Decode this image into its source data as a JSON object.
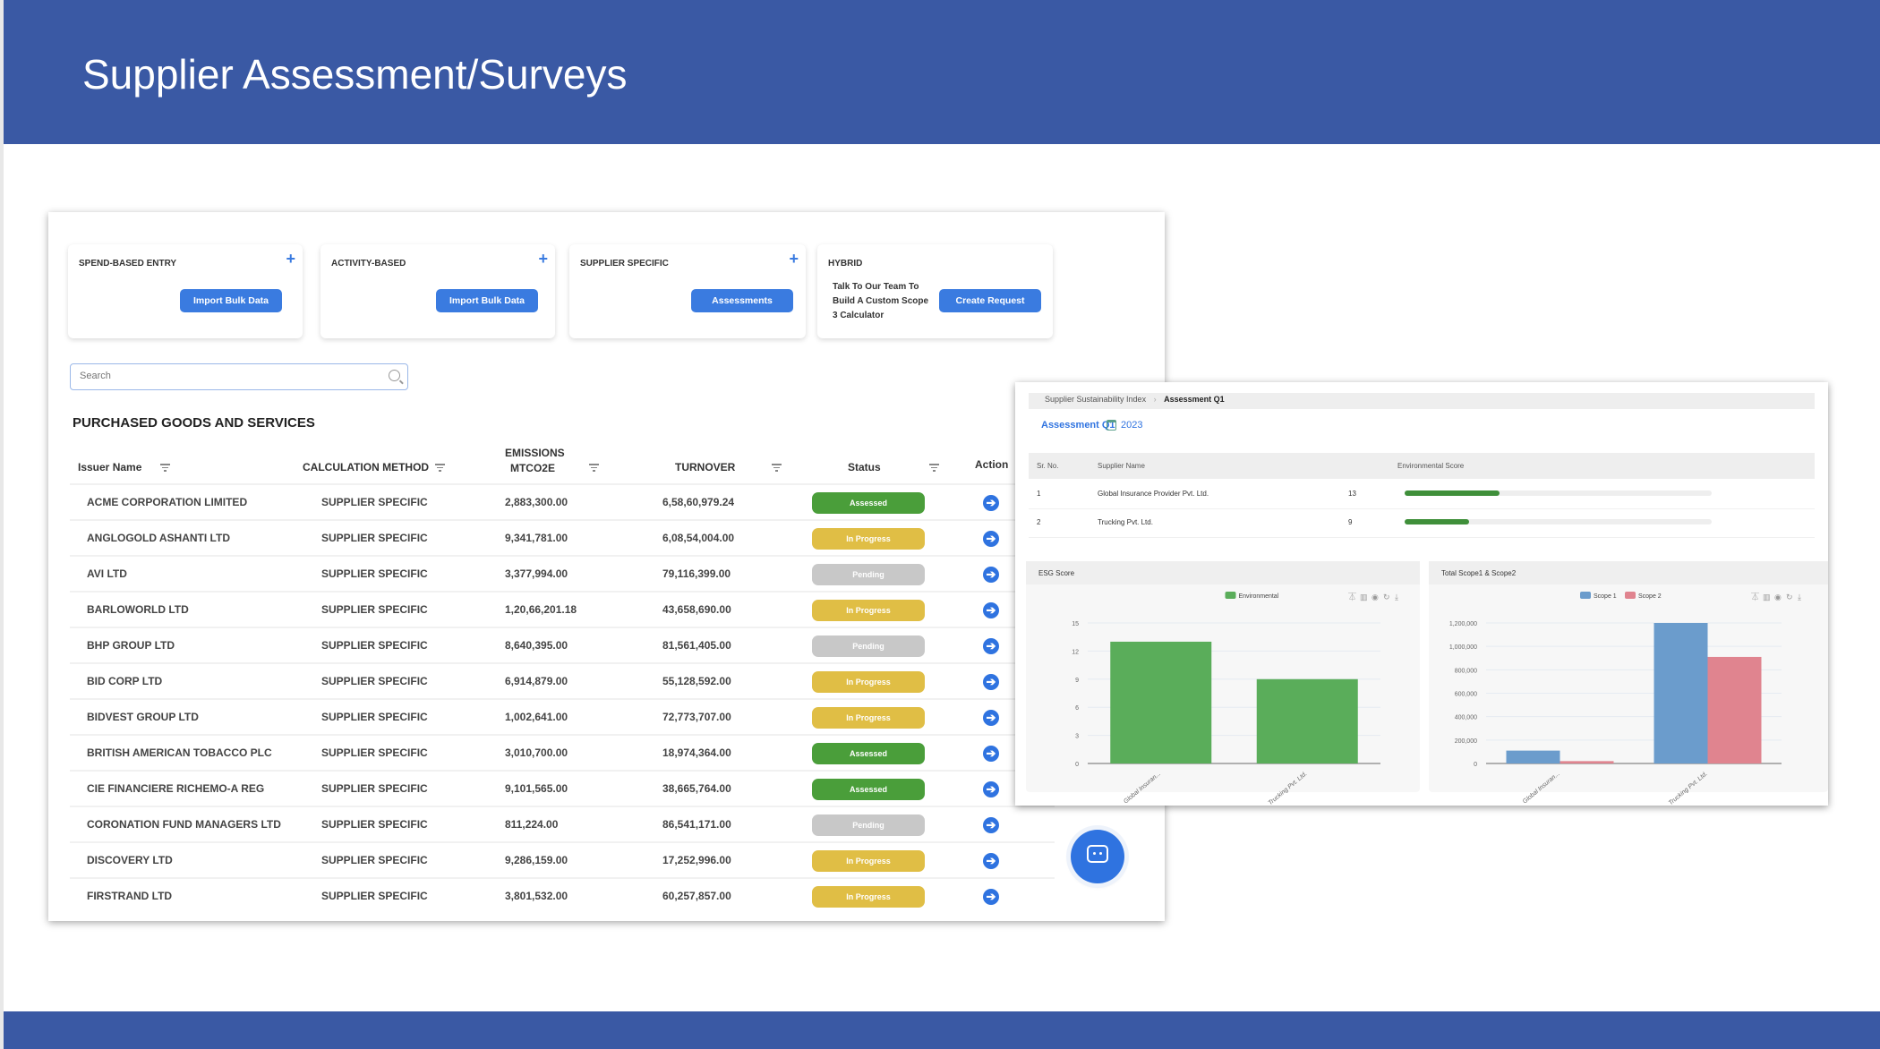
{
  "page_title": "Supplier Assessment/Surveys",
  "cards": [
    {
      "title": "SPEND-BASED ENTRY",
      "button": "Import Bulk Data",
      "has_plus": true
    },
    {
      "title": "ACTIVITY-BASED",
      "button": "Import Bulk Data",
      "has_plus": true
    },
    {
      "title": "SUPPLIER SPECIFIC",
      "button": "Assessments",
      "has_plus": true
    },
    {
      "title": "HYBRID",
      "button": "Create Request",
      "text": "Talk To Our Team To Build A Custom Scope 3 Calculator",
      "has_plus": false
    }
  ],
  "search": {
    "placeholder": "Search"
  },
  "section_title": "PURCHASED GOODS AND SERVICES",
  "table": {
    "headers": {
      "issuer": "Issuer Name",
      "method": "CALCULATION METHOD",
      "emissions_1": "EMISSIONS",
      "emissions_2": "MTCO2E",
      "turnover": "TURNOVER",
      "status": "Status",
      "action": "Action"
    },
    "rows": [
      {
        "name": "ACME CORPORATION LIMITED",
        "method": "SUPPLIER SPECIFIC",
        "emissions": "2,883,300.00",
        "turnover": "6,58,60,979.24",
        "status": "Assessed"
      },
      {
        "name": "ANGLOGOLD ASHANTI LTD",
        "method": "SUPPLIER SPECIFIC",
        "emissions": "9,341,781.00",
        "turnover": "6,08,54,004.00",
        "status": "In Progress"
      },
      {
        "name": "AVI LTD",
        "method": "SUPPLIER SPECIFIC",
        "emissions": "3,377,994.00",
        "turnover": "79,116,399.00",
        "status": "Pending"
      },
      {
        "name": "BARLOWORLD LTD",
        "method": "SUPPLIER SPECIFIC",
        "emissions": "1,20,66,201.18",
        "turnover": "43,658,690.00",
        "status": "In Progress"
      },
      {
        "name": "BHP GROUP LTD",
        "method": "SUPPLIER SPECIFIC",
        "emissions": "8,640,395.00",
        "turnover": "81,561,405.00",
        "status": "Pending"
      },
      {
        "name": "BID CORP LTD",
        "method": "SUPPLIER SPECIFIC",
        "emissions": "6,914,879.00",
        "turnover": "55,128,592.00",
        "status": "In Progress"
      },
      {
        "name": "BIDVEST GROUP LTD",
        "method": "SUPPLIER SPECIFIC",
        "emissions": "1,002,641.00",
        "turnover": "72,773,707.00",
        "status": "In Progress"
      },
      {
        "name": "BRITISH AMERICAN TOBACCO PLC",
        "method": "SUPPLIER SPECIFIC",
        "emissions": "3,010,700.00",
        "turnover": "18,974,364.00",
        "status": "Assessed"
      },
      {
        "name": "CIE FINANCIERE RICHEMO-A REG",
        "method": "SUPPLIER SPECIFIC",
        "emissions": "9,101,565.00",
        "turnover": "38,665,764.00",
        "status": "Assessed"
      },
      {
        "name": "CORONATION FUND MANAGERS LTD",
        "method": "SUPPLIER SPECIFIC",
        "emissions": "811,224.00",
        "turnover": "86,541,171.00",
        "status": "Pending"
      },
      {
        "name": "DISCOVERY LTD",
        "method": "SUPPLIER SPECIFIC",
        "emissions": "9,286,159.00",
        "turnover": "17,252,996.00",
        "status": "In Progress"
      },
      {
        "name": "FIRSTRAND LTD",
        "method": "SUPPLIER SPECIFIC",
        "emissions": "3,801,532.00",
        "turnover": "60,257,857.00",
        "status": "In Progress"
      }
    ]
  },
  "status_colors": {
    "Assessed": "#4a9e3a",
    "In Progress": "#e0be45",
    "Pending": "#c8c8c8"
  },
  "colors": {
    "header": "#3a59a4",
    "accent": "#3a7be0"
  },
  "overlay": {
    "breadcrumb": [
      "Supplier Sustainability Index",
      "Assessment Q1"
    ],
    "assessment_title": "Assessment Q1",
    "year": "2023",
    "headers": {
      "sr": "Sr. No.",
      "supplier": "Supplier Name",
      "score": "Environmental Score"
    },
    "rows": [
      {
        "sr": "1",
        "supplier": "Global Insurance Provider Pvt. Ltd.",
        "score": "13",
        "bar_fill_percent": 31
      },
      {
        "sr": "2",
        "supplier": "Trucking Pvt. Ltd.",
        "score": "9",
        "bar_fill_percent": 21
      }
    ]
  },
  "chart_data": [
    {
      "type": "bar",
      "title": "ESG Score",
      "categories": [
        "Global Insuran...",
        "Trucking Pvt. Ltd."
      ],
      "series": [
        {
          "name": "Environmental",
          "values": [
            13,
            9
          ],
          "color": "#5aad5a"
        }
      ],
      "ylim": [
        0,
        15
      ],
      "yticks": [
        0,
        3,
        6,
        9,
        12,
        15
      ],
      "ytick_labels": [
        "0",
        "3",
        "6",
        "9",
        "12",
        "15"
      ],
      "legend": "top",
      "grid": true
    },
    {
      "type": "bar",
      "title": "Total Scope1 & Scope2",
      "categories": [
        "Global Insuran...",
        "Trucking Pvt. Ltd."
      ],
      "series": [
        {
          "name": "Scope 1",
          "values": [
            110000,
            1200000
          ],
          "color": "#6b9ccc"
        },
        {
          "name": "Scope 2",
          "values": [
            20000,
            910000
          ],
          "color": "#e0848f"
        }
      ],
      "ylim": [
        0,
        1200000
      ],
      "yticks": [
        0,
        200000,
        400000,
        600000,
        800000,
        1000000,
        1200000
      ],
      "ytick_labels": [
        "0",
        "200,000",
        "400,000",
        "600,000",
        "800,000",
        "1,000,000",
        "1,200,000"
      ],
      "legend": "top",
      "grid": true
    }
  ]
}
